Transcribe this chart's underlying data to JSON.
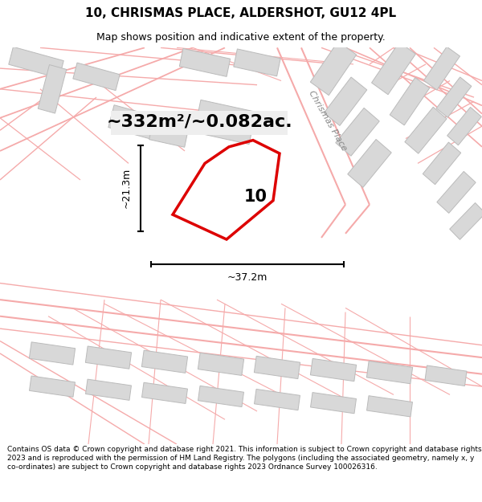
{
  "title_line1": "10, CHRISMAS PLACE, ALDERSHOT, GU12 4PL",
  "title_line2": "Map shows position and indicative extent of the property.",
  "area_text": "~332m²/~0.082ac.",
  "label_number": "10",
  "dim_height": "~21.3m",
  "dim_width": "~37.2m",
  "street_label": "Chrismas Place",
  "footer_text": "Contains OS data © Crown copyright and database right 2021. This information is subject to Crown copyright and database rights 2023 and is reproduced with the permission of HM Land Registry. The polygons (including the associated geometry, namely x, y co-ordinates) are subject to Crown copyright and database rights 2023 Ordnance Survey 100026316.",
  "bg_color": "#ffffff",
  "map_bg": "#ffffff",
  "plot_color_fill": "none",
  "plot_color_edge": "#dd0000",
  "building_fill": "#d8d8d8",
  "building_edge": "#bbbbbb",
  "road_line_color": "#f5aaaa",
  "title_fontsize": 11,
  "subtitle_fontsize": 9,
  "area_fontsize": 16,
  "dim_fontsize": 9,
  "footer_fontsize": 6.5
}
